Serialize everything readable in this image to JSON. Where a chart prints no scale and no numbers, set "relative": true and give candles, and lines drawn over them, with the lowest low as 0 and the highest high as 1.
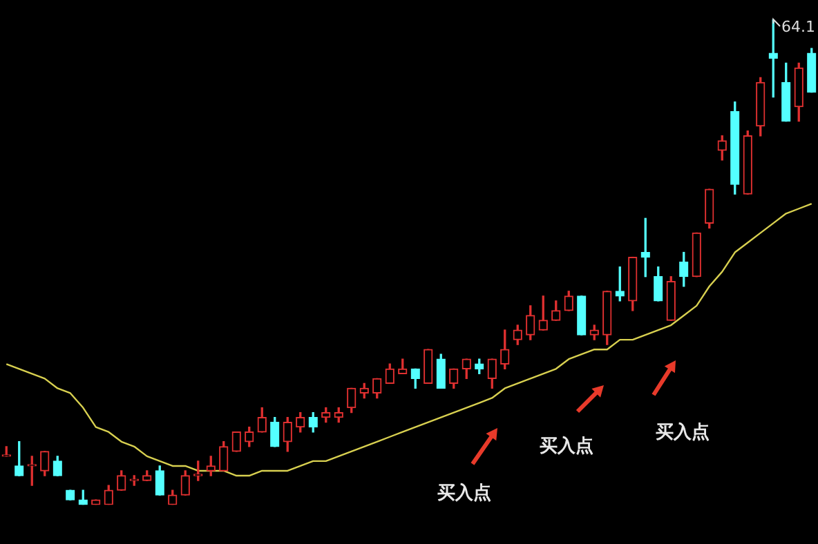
{
  "chart_data": {
    "type": "candlestick",
    "relative": true,
    "legend": false,
    "categories": [
      null,
      null,
      null,
      null,
      null,
      null,
      null,
      null,
      null,
      null,
      null,
      null,
      null,
      null,
      null,
      null,
      null,
      null,
      null,
      null,
      null,
      null,
      null,
      null,
      null,
      null,
      null,
      null,
      null,
      null,
      null,
      null,
      null,
      null,
      null,
      null,
      null,
      null,
      null,
      null,
      null,
      null,
      null,
      null,
      null,
      null,
      null,
      null,
      null,
      null,
      null,
      null,
      null,
      null,
      null,
      null,
      null,
      null,
      null,
      null,
      null,
      null,
      null,
      null
    ],
    "ohlc": [
      [
        0.1,
        0.12,
        0.1,
        0.1
      ],
      [
        0.08,
        0.13,
        0.06,
        0.06
      ],
      [
        0.08,
        0.1,
        0.04,
        0.08
      ],
      [
        0.07,
        0.11,
        0.06,
        0.11
      ],
      [
        0.09,
        0.1,
        0.06,
        0.06
      ],
      [
        0.03,
        0.03,
        0.01,
        0.01
      ],
      [
        0.01,
        0.03,
        0,
        0
      ],
      [
        0,
        0.01,
        0,
        0.01
      ],
      [
        0,
        0.04,
        0,
        0.03
      ],
      [
        0.03,
        0.07,
        0.03,
        0.06
      ],
      [
        0.05,
        0.06,
        0.04,
        0.05
      ],
      [
        0.05,
        0.07,
        0.05,
        0.06
      ],
      [
        0.07,
        0.08,
        0.02,
        0.02
      ],
      [
        0,
        0.03,
        0,
        0.02
      ],
      [
        0.02,
        0.07,
        0.02,
        0.06
      ],
      [
        0.06,
        0.09,
        0.05,
        0.06
      ],
      [
        0.07,
        0.1,
        0.06,
        0.08
      ],
      [
        0.07,
        0.13,
        0.07,
        0.12
      ],
      [
        0.11,
        0.15,
        0.11,
        0.15
      ],
      [
        0.13,
        0.16,
        0.12,
        0.15
      ],
      [
        0.15,
        0.2,
        0.15,
        0.18
      ],
      [
        0.17,
        0.18,
        0.12,
        0.12
      ],
      [
        0.13,
        0.18,
        0.11,
        0.17
      ],
      [
        0.16,
        0.19,
        0.15,
        0.18
      ],
      [
        0.18,
        0.19,
        0.15,
        0.16
      ],
      [
        0.18,
        0.2,
        0.17,
        0.19
      ],
      [
        0.18,
        0.2,
        0.17,
        0.19
      ],
      [
        0.2,
        0.24,
        0.19,
        0.24
      ],
      [
        0.23,
        0.25,
        0.22,
        0.24
      ],
      [
        0.23,
        0.26,
        0.22,
        0.26
      ],
      [
        0.25,
        0.29,
        0.25,
        0.28
      ],
      [
        0.27,
        0.3,
        0.27,
        0.28
      ],
      [
        0.28,
        0.28,
        0.24,
        0.26
      ],
      [
        0.25,
        0.32,
        0.25,
        0.32
      ],
      [
        0.3,
        0.31,
        0.24,
        0.24
      ],
      [
        0.25,
        0.28,
        0.24,
        0.28
      ],
      [
        0.28,
        0.3,
        0.26,
        0.3
      ],
      [
        0.29,
        0.3,
        0.27,
        0.28
      ],
      [
        0.26,
        0.3,
        0.24,
        0.3
      ],
      [
        0.29,
        0.36,
        0.28,
        0.32
      ],
      [
        0.34,
        0.37,
        0.33,
        0.36
      ],
      [
        0.35,
        0.41,
        0.34,
        0.39
      ],
      [
        0.36,
        0.43,
        0.36,
        0.38
      ],
      [
        0.38,
        0.42,
        0.38,
        0.4
      ],
      [
        0.4,
        0.44,
        0.4,
        0.43
      ],
      [
        0.43,
        0.43,
        0.35,
        0.35
      ],
      [
        0.35,
        0.37,
        0.34,
        0.36
      ],
      [
        0.35,
        0.44,
        0.33,
        0.44
      ],
      [
        0.44,
        0.49,
        0.42,
        0.43
      ],
      [
        0.42,
        0.51,
        0.4,
        0.51
      ],
      [
        0.52,
        0.59,
        0.47,
        0.51
      ],
      [
        0.47,
        0.49,
        0.42,
        0.42
      ],
      [
        0.38,
        0.47,
        0.38,
        0.46
      ],
      [
        0.5,
        0.52,
        0.45,
        0.47
      ],
      [
        0.47,
        0.56,
        0.47,
        0.56
      ],
      [
        0.58,
        0.65,
        0.57,
        0.65
      ],
      [
        0.73,
        0.76,
        0.71,
        0.75
      ],
      [
        0.81,
        0.83,
        0.64,
        0.66
      ],
      [
        0.64,
        0.77,
        0.64,
        0.76
      ],
      [
        0.78,
        0.88,
        0.76,
        0.87
      ],
      [
        0.93,
        1,
        0.84,
        0.92
      ],
      [
        0.87,
        0.91,
        0.79,
        0.79
      ],
      [
        0.82,
        0.91,
        0.79,
        0.9
      ],
      [
        0.93,
        0.94,
        0.85,
        0.85
      ]
    ],
    "colors": [
      "#e03030",
      "#54ffff",
      "#e03030",
      "#e03030",
      "#54ffff",
      "#54ffff",
      "#54ffff",
      "#e03030",
      "#e03030",
      "#e03030",
      "#e03030",
      "#e03030",
      "#54ffff",
      "#e03030",
      "#e03030",
      "#e03030",
      "#e03030",
      "#e03030",
      "#e03030",
      "#e03030",
      "#e03030",
      "#54ffff",
      "#e03030",
      "#e03030",
      "#54ffff",
      "#e03030",
      "#e03030",
      "#e03030",
      "#e03030",
      "#e03030",
      "#e03030",
      "#e03030",
      "#54ffff",
      "#e03030",
      "#54ffff",
      "#e03030",
      "#e03030",
      "#54ffff",
      "#e03030",
      "#e03030",
      "#e03030",
      "#e03030",
      "#e03030",
      "#e03030",
      "#e03030",
      "#54ffff",
      "#e03030",
      "#e03030",
      "#54ffff",
      "#e03030",
      "#54ffff",
      "#54ffff",
      "#e03030",
      "#54ffff",
      "#e03030",
      "#e03030",
      "#e03030",
      "#54ffff",
      "#e03030",
      "#e03030",
      "#54ffff",
      "#54ffff",
      "#e03030",
      "#54ffff"
    ],
    "series": [
      {
        "type": "line",
        "color": "#d8d050",
        "values": [
          0.29,
          0.28,
          0.27,
          0.26,
          0.24,
          0.23,
          0.2,
          0.16,
          0.15,
          0.13,
          0.12,
          0.1,
          0.09,
          0.08,
          0.08,
          0.07,
          0.07,
          0.07,
          0.06,
          0.06,
          0.07,
          0.07,
          0.07,
          0.08,
          0.09,
          0.09,
          0.1,
          0.11,
          0.12,
          0.13,
          0.14,
          0.15,
          0.16,
          0.17,
          0.18,
          0.19,
          0.2,
          0.21,
          0.22,
          0.24,
          0.25,
          0.26,
          0.27,
          0.28,
          0.3,
          0.31,
          0.32,
          0.32,
          0.34,
          0.34,
          0.35,
          0.36,
          0.37,
          0.39,
          0.41,
          0.45,
          0.48,
          0.52,
          0.54,
          0.56,
          0.58,
          0.6,
          0.61,
          0.62
        ]
      }
    ],
    "annotations": [
      "64.1",
      "买入点",
      "买入点",
      "买入点"
    ]
  }
}
